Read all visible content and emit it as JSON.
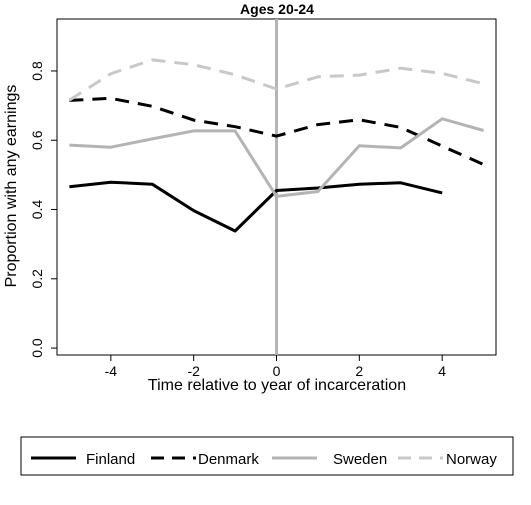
{
  "chart_data": {
    "type": "line",
    "title": "Ages 20-24",
    "xlabel": "Time relative to year of incarceration",
    "ylabel": "Proportion with any earnings",
    "xlim": [
      -5.3,
      5.3
    ],
    "ylim": [
      -0.02,
      0.95
    ],
    "xticks": [
      -4,
      -2,
      0,
      2,
      4
    ],
    "yticks": [
      0.0,
      0.2,
      0.4,
      0.6,
      0.8
    ],
    "xtick_labels": [
      "-4",
      "-2",
      "0",
      "2",
      "4"
    ],
    "ytick_labels": [
      "0.0",
      "0.2",
      "0.4",
      "0.6",
      "0.8"
    ],
    "reference_line_x": 0,
    "legend_position": "bottom",
    "series": [
      {
        "name": "Finland",
        "color": "#000000",
        "dash": "solid",
        "x": [
          -5,
          -4,
          -3,
          -2,
          -1,
          0,
          1,
          2,
          3,
          4
        ],
        "y": [
          0.466,
          0.479,
          0.473,
          0.397,
          0.338,
          0.455,
          0.462,
          0.473,
          0.477,
          0.448
        ]
      },
      {
        "name": "Denmark",
        "color": "#000000",
        "dash": "dashed",
        "x": [
          -5,
          -4,
          -3,
          -2,
          -1,
          0,
          1,
          2,
          3,
          4,
          5
        ],
        "y": [
          0.715,
          0.721,
          0.698,
          0.658,
          0.639,
          0.612,
          0.645,
          0.659,
          0.637,
          0.583,
          0.53
        ]
      },
      {
        "name": "Sweden",
        "color": "#b4b4b4",
        "dash": "solid",
        "x": [
          -5,
          -4,
          -3,
          -2,
          -1,
          0,
          1,
          2,
          3,
          4,
          5
        ],
        "y": [
          0.586,
          0.58,
          0.604,
          0.627,
          0.627,
          0.438,
          0.452,
          0.584,
          0.578,
          0.662,
          0.628
        ]
      },
      {
        "name": "Norway",
        "color": "#c8c8c8",
        "dash": "dashed",
        "x": [
          -5,
          -4,
          -3,
          -2,
          -1,
          0,
          1,
          2,
          3,
          4,
          5
        ],
        "y": [
          0.716,
          0.792,
          0.832,
          0.818,
          0.789,
          0.748,
          0.783,
          0.788,
          0.808,
          0.793,
          0.763
        ]
      }
    ]
  }
}
